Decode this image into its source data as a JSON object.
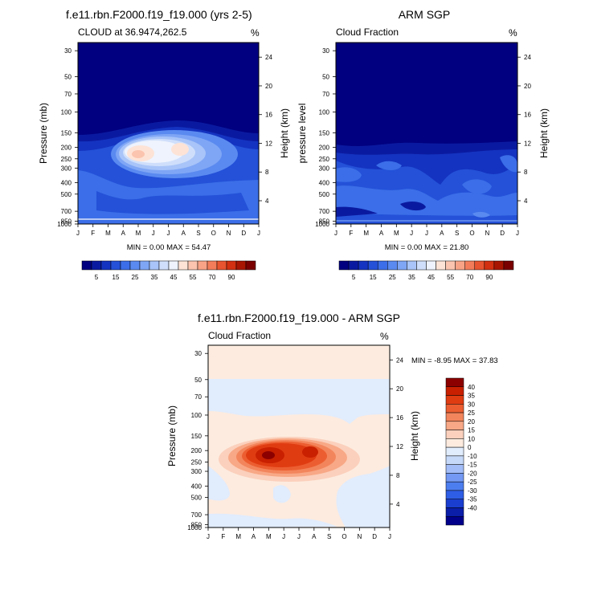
{
  "colors": {
    "cloud": [
      "#000080",
      "#0a1aa0",
      "#1433c0",
      "#2451d8",
      "#3b6ee8",
      "#5a8af0",
      "#7fa6f5",
      "#a8c4f8",
      "#cfdffb",
      "#eef3fd",
      "#fde3d6",
      "#fbc4ae",
      "#f9a386",
      "#f37d5a",
      "#e8542f",
      "#d23010",
      "#a81500",
      "#7a0000"
    ],
    "diff": [
      "#00008b",
      "#0a1eaa",
      "#1a3ed0",
      "#2f5ee6",
      "#4d7ef0",
      "#7399f4",
      "#a2bdf7",
      "#c6d9f9",
      "#e1ecfc",
      "#fdebdf",
      "#fbd0bc",
      "#f8a886",
      "#f3855c",
      "#ec5e31",
      "#e03c12",
      "#c82000",
      "#8c0000"
    ]
  },
  "chart_data": [
    {
      "type": "heatmap",
      "title": "f.e11.rbn.F2000.f19_f19.000 (yrs 2-5)",
      "subtitle_left": "CLOUD at 36.9474,262.5",
      "subtitle_right": "%",
      "xlabel": "",
      "ylabel": "Pressure (mb)",
      "ylabel_right": "Height (km)",
      "x_ticks": [
        "J",
        "F",
        "M",
        "A",
        "M",
        "J",
        "J",
        "A",
        "S",
        "O",
        "N",
        "D",
        "J"
      ],
      "y_ticks": [
        "30",
        "50",
        "70",
        "100",
        "150",
        "200",
        "250",
        "300",
        "400",
        "500",
        "700",
        "850",
        "1000"
      ],
      "y_ticks_right": [
        "24",
        "20",
        "16",
        "12",
        "8",
        "4"
      ],
      "stats": "MIN =   0.00 MAX =  54.47",
      "colorbar_labels": [
        "5",
        "15",
        "25",
        "35",
        "45",
        "55",
        "70",
        "90"
      ]
    },
    {
      "type": "heatmap",
      "title": "ARM SGP",
      "subtitle_left": "Cloud Fraction",
      "subtitle_right": "%",
      "ylabel": "pressure level",
      "ylabel_right": "Height (km)",
      "x_ticks": [
        "J",
        "F",
        "M",
        "A",
        "M",
        "J",
        "J",
        "A",
        "S",
        "O",
        "N",
        "D",
        "J"
      ],
      "y_ticks": [
        "30",
        "50",
        "70",
        "100",
        "150",
        "200",
        "250",
        "300",
        "400",
        "500",
        "700",
        "850",
        "1000"
      ],
      "y_ticks_right": [
        "24",
        "20",
        "16",
        "12",
        "8",
        "4"
      ],
      "stats": "MIN =   0.00 MAX =  21.80",
      "colorbar_labels": [
        "5",
        "15",
        "25",
        "35",
        "45",
        "55",
        "70",
        "90"
      ]
    },
    {
      "type": "heatmap",
      "title": "f.e11.rbn.F2000.f19_f19.000 - ARM SGP",
      "subtitle_left": "Cloud Fraction",
      "subtitle_right": "%",
      "ylabel": "Pressure (mb)",
      "ylabel_right": "Height (km)",
      "x_ticks": [
        "J",
        "F",
        "M",
        "A",
        "M",
        "J",
        "J",
        "A",
        "S",
        "O",
        "N",
        "D",
        "J"
      ],
      "y_ticks": [
        "30",
        "50",
        "70",
        "100",
        "150",
        "200",
        "250",
        "300",
        "400",
        "500",
        "700",
        "850",
        "1000"
      ],
      "y_ticks_right": [
        "24",
        "20",
        "16",
        "12",
        "8",
        "4"
      ],
      "stats": "MIN =  -8.95 MAX =  37.83",
      "colorbar_labels": [
        "40",
        "35",
        "30",
        "25",
        "20",
        "15",
        "10",
        "0",
        "-10",
        "-15",
        "-20",
        "-25",
        "-30",
        "-35",
        "-40"
      ]
    }
  ]
}
